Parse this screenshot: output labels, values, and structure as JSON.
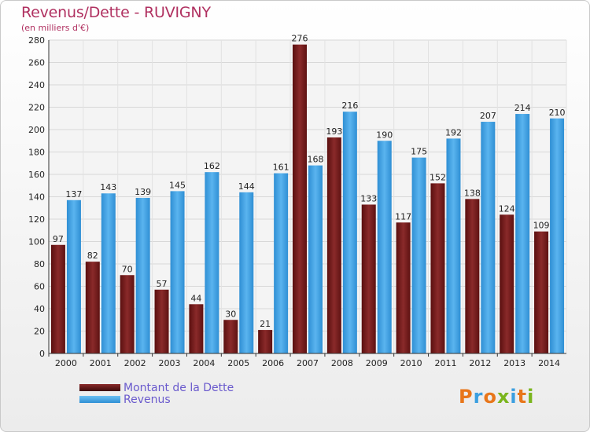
{
  "header": {
    "title": "Revenus/Dette - RUVIGNY",
    "subtitle": "(en milliers d'€)"
  },
  "legend": {
    "items": [
      {
        "label": "Montant de la Dette",
        "color": "#7a1f1f"
      },
      {
        "label": "Revenus",
        "color": "#3b9fe0"
      }
    ]
  },
  "logo": {
    "text": "Proxiti",
    "colors": [
      "#e8761a",
      "#3b9fe0",
      "#e8761a",
      "#7ab51d",
      "#3b9fe0",
      "#e8761a",
      "#7ab51d"
    ]
  },
  "chart_data": {
    "type": "bar",
    "title": "Revenus/Dette - RUVIGNY",
    "subtitle": "(en milliers d'€)",
    "categories": [
      "2000",
      "2001",
      "2002",
      "2003",
      "2004",
      "2005",
      "2006",
      "2007",
      "2008",
      "2009",
      "2010",
      "2011",
      "2012",
      "2013",
      "2014"
    ],
    "series": [
      {
        "name": "Montant de la Dette",
        "color": "#7a1f1f",
        "values": [
          97,
          82,
          70,
          57,
          44,
          30,
          21,
          276,
          193,
          133,
          117,
          152,
          138,
          124,
          109
        ]
      },
      {
        "name": "Revenus",
        "color": "#3b9fe0",
        "values": [
          137,
          143,
          139,
          145,
          162,
          144,
          161,
          168,
          216,
          190,
          175,
          192,
          207,
          214,
          210
        ]
      }
    ],
    "ylim": [
      0,
      280
    ],
    "yticks": [
      0,
      20,
      40,
      60,
      80,
      100,
      120,
      140,
      160,
      180,
      200,
      220,
      240,
      260,
      280
    ],
    "grid": true,
    "legend_position": "bottom-left"
  }
}
